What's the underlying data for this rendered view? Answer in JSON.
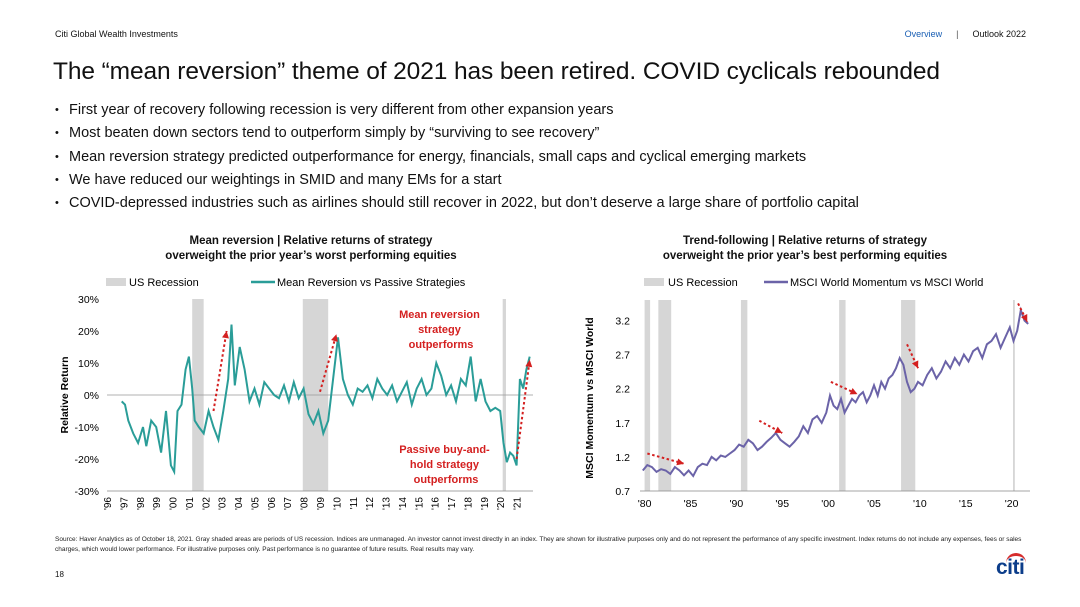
{
  "header": {
    "brand": "Citi Global Wealth Investments",
    "nav_overview": "Overview",
    "nav_sep": "|",
    "nav_outlook": "Outlook 2022"
  },
  "title": "The “mean reversion” theme of 2021 has been retired. COVID cyclicals rebounded",
  "bullets": [
    "First year of recovery following recession is very different from other expansion years",
    "Most beaten down sectors tend to outperform simply by “surviving to see recovery”",
    "Mean reversion strategy predicted outperformance for energy, financials, small caps and cyclical emerging markets",
    "We have reduced our weightings in SMID and many EMs for a start",
    "COVID-depressed industries such as airlines should still recover in 2022, but don’t deserve a large share of portfolio capital"
  ],
  "colors": {
    "line": "#2a9d98",
    "line2": "#6b63a8",
    "recession": "#d6d6d6",
    "arrow": "#d42020",
    "annot": "#d42020",
    "nav": "#1a5fb4"
  },
  "chart_data": [
    {
      "type": "line",
      "title_lines": [
        "Mean reversion | Relative returns of strategy",
        "overweight the prior year’s worst performing equities"
      ],
      "legend": [
        "US Recession",
        "Mean Reversion vs Passive Strategies"
      ],
      "ylabel": "Relative Return",
      "ylim": [
        -30,
        30
      ],
      "yticks": [
        -30,
        -20,
        -10,
        0,
        10,
        20,
        30
      ],
      "ytick_labels": [
        "-30%",
        "-20%",
        "-10%",
        "0%",
        "10%",
        "20%",
        "30%"
      ],
      "xlim": [
        1996,
        2022
      ],
      "xtick_labels": [
        "'96",
        "'97",
        "'98",
        "'99",
        "'00",
        "'01",
        "'02",
        "'03",
        "'04",
        "'05",
        "'06",
        "'07",
        "'08",
        "'09",
        "'10",
        "'11",
        "'12",
        "'13",
        "'14",
        "'15",
        "'16",
        "'17",
        "'18",
        "'19",
        "'20",
        "'21"
      ],
      "recessions": [
        [
          2001.2,
          2001.9
        ],
        [
          2007.95,
          2009.5
        ],
        [
          2020.15,
          2020.35
        ]
      ],
      "x": [
        1996.9,
        1997.1,
        1997.3,
        1997.6,
        1997.9,
        1998.2,
        1998.4,
        1998.7,
        1999.0,
        1999.3,
        1999.6,
        1999.9,
        2000.1,
        2000.3,
        2000.55,
        2000.8,
        2001.0,
        2001.2,
        2001.35,
        2001.6,
        2001.9,
        2002.2,
        2002.5,
        2002.8,
        2003.1,
        2003.4,
        2003.6,
        2003.8,
        2004.1,
        2004.4,
        2004.7,
        2005.0,
        2005.3,
        2005.6,
        2005.9,
        2006.2,
        2006.5,
        2006.8,
        2007.1,
        2007.4,
        2007.7,
        2008.0,
        2008.3,
        2008.6,
        2008.9,
        2009.2,
        2009.5,
        2009.8,
        2010.1,
        2010.4,
        2010.7,
        2011.0,
        2011.3,
        2011.6,
        2011.9,
        2012.2,
        2012.5,
        2012.8,
        2013.1,
        2013.4,
        2013.7,
        2014.0,
        2014.3,
        2014.6,
        2014.9,
        2015.2,
        2015.5,
        2015.8,
        2016.1,
        2016.4,
        2016.7,
        2017.0,
        2017.3,
        2017.6,
        2017.9,
        2018.2,
        2018.5,
        2018.8,
        2019.1,
        2019.4,
        2019.7,
        2020.0,
        2020.2,
        2020.4,
        2020.6,
        2020.8,
        2021.0,
        2021.2,
        2021.4,
        2021.6,
        2021.8
      ],
      "values": [
        -2,
        -3,
        -8,
        -12,
        -15,
        -10,
        -16,
        -8,
        -10,
        -18,
        -5,
        -22,
        -24,
        -5,
        -3,
        8,
        12,
        2,
        -8,
        -10,
        -12,
        -5,
        -10,
        -14,
        -5,
        5,
        22,
        3,
        15,
        8,
        -2,
        2,
        -3,
        4,
        2,
        0,
        -1,
        3,
        -2,
        4,
        -1,
        2,
        -6,
        -9,
        -5,
        -12,
        -8,
        5,
        18,
        5,
        0,
        -3,
        2,
        1,
        3,
        -1,
        5,
        2,
        0,
        3,
        -2,
        1,
        4,
        -3,
        2,
        5,
        0,
        2,
        10,
        6,
        0,
        3,
        -2,
        5,
        3,
        12,
        -2,
        5,
        -2,
        -5,
        -4,
        -5,
        -15,
        -21,
        -18,
        -19,
        -22,
        5,
        2,
        8,
        12
      ],
      "annotations": [
        {
          "text": [
            "Mean reversion",
            "strategy",
            "outperforms"
          ]
        },
        {
          "text": [
            "Passive buy-and-",
            "hold strategy",
            "outperforms"
          ]
        }
      ]
    },
    {
      "type": "line",
      "title_lines": [
        "Trend-following | Relative returns of strategy",
        "overweight the prior year’s best performing equities"
      ],
      "legend": [
        "US Recession",
        "MSCI World Momentum vs MSCI World"
      ],
      "ylabel": "MSCI Momentum vs MSCI World",
      "ylim": [
        0.7,
        3.5
      ],
      "yticks": [
        0.7,
        1.2,
        1.7,
        2.2,
        2.7,
        3.2
      ],
      "ytick_labels": [
        "0.7",
        "1.2",
        "1.7",
        "2.2",
        "2.7",
        "3.2"
      ],
      "xlim": [
        1979.5,
        2022
      ],
      "xticks": [
        1980,
        1985,
        1990,
        1995,
        2000,
        2005,
        2010,
        2015,
        2020
      ],
      "xtick_labels": [
        "'80",
        "'85",
        "'90",
        "'95",
        "'00",
        "'05",
        "'10",
        "'15",
        "'20"
      ],
      "recessions": [
        [
          1980.0,
          1980.6
        ],
        [
          1981.5,
          1982.9
        ],
        [
          1990.5,
          1991.2
        ],
        [
          2001.2,
          2001.9
        ],
        [
          2007.95,
          2009.5
        ],
        [
          2020.15,
          2020.35
        ]
      ],
      "x": [
        1979.8,
        1980.3,
        1980.8,
        1981.3,
        1981.8,
        1982.3,
        1982.8,
        1983.3,
        1983.8,
        1984.3,
        1984.8,
        1985.3,
        1985.8,
        1986.3,
        1986.8,
        1987.3,
        1987.8,
        1988.3,
        1988.8,
        1989.3,
        1989.8,
        1990.3,
        1990.8,
        1991.3,
        1991.8,
        1992.3,
        1992.8,
        1993.3,
        1993.8,
        1994.3,
        1994.8,
        1995.3,
        1995.8,
        1996.3,
        1996.8,
        1997.3,
        1997.8,
        1998.3,
        1998.8,
        1999.3,
        1999.8,
        2000.2,
        2000.6,
        2001.0,
        2001.4,
        2001.8,
        2002.2,
        2002.6,
        2003.0,
        2003.4,
        2003.8,
        2004.2,
        2004.6,
        2005.0,
        2005.4,
        2005.8,
        2006.2,
        2006.6,
        2007.0,
        2007.4,
        2007.8,
        2008.2,
        2008.6,
        2009.0,
        2009.4,
        2009.8,
        2010.3,
        2010.8,
        2011.3,
        2011.8,
        2012.3,
        2012.8,
        2013.3,
        2013.8,
        2014.3,
        2014.8,
        2015.3,
        2015.8,
        2016.3,
        2016.8,
        2017.3,
        2017.8,
        2018.3,
        2018.8,
        2019.3,
        2019.8,
        2020.2,
        2020.6,
        2021.0,
        2021.4,
        2021.8
      ],
      "values": [
        1.0,
        1.08,
        1.05,
        0.98,
        1.02,
        1.0,
        0.95,
        1.05,
        1.0,
        0.93,
        1.0,
        0.92,
        1.05,
        1.1,
        1.08,
        1.2,
        1.15,
        1.22,
        1.2,
        1.25,
        1.3,
        1.38,
        1.35,
        1.45,
        1.4,
        1.3,
        1.35,
        1.42,
        1.48,
        1.55,
        1.45,
        1.4,
        1.35,
        1.42,
        1.5,
        1.65,
        1.55,
        1.75,
        1.8,
        1.7,
        1.85,
        2.1,
        1.95,
        1.9,
        2.05,
        1.85,
        1.95,
        2.05,
        2.0,
        2.1,
        2.15,
        2.0,
        2.1,
        2.25,
        2.1,
        2.3,
        2.2,
        2.35,
        2.4,
        2.5,
        2.65,
        2.55,
        2.3,
        2.15,
        2.2,
        2.3,
        2.25,
        2.4,
        2.5,
        2.35,
        2.45,
        2.6,
        2.5,
        2.65,
        2.55,
        2.7,
        2.6,
        2.75,
        2.8,
        2.65,
        2.85,
        2.9,
        3.0,
        2.8,
        2.95,
        3.1,
        2.9,
        3.05,
        3.35,
        3.2,
        3.15
      ]
    }
  ],
  "footnote": "Source: Haver Analytics as of October 18, 2021. Gray shaded areas are periods of US recession. Indices are unmanaged. An investor cannot invest directly in an index. They are shown for illustrative purposes only and do not represent the performance of any specific investment. Index returns do not include any expenses, fees or sales charges, which would lower performance. For illustrative purposes only. Past performance is no guarantee of future results. Real results may vary.",
  "page_number": "18",
  "logo_text": "citi"
}
